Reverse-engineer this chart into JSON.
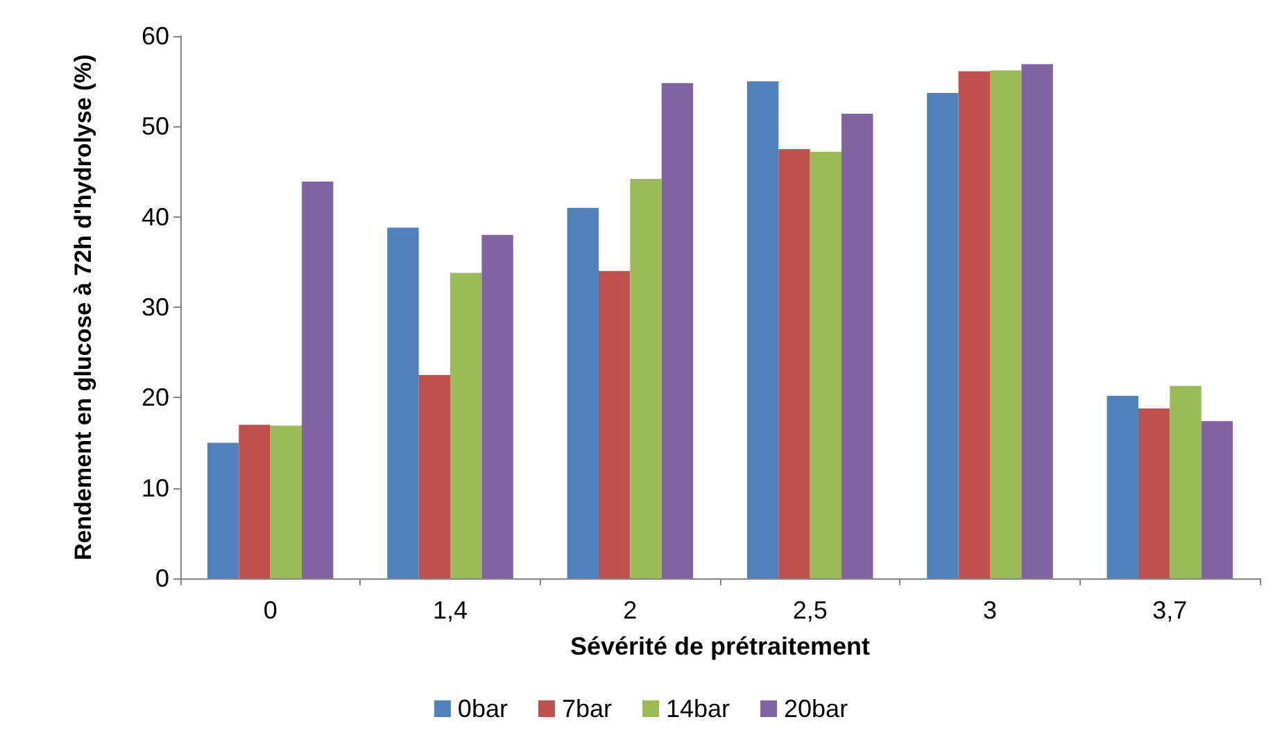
{
  "chart_data": {
    "type": "bar",
    "xlabel": "Sévérité de prétraitement",
    "ylabel": "Rendement en glucose à 72h d'hydrolyse (%)",
    "categories": [
      "0",
      "1,4",
      "2",
      "2,5",
      "3",
      "3,7"
    ],
    "series": [
      {
        "name": "0bar",
        "color": "#4f81bd",
        "values": [
          15,
          38.8,
          41,
          55,
          53.7,
          20.2
        ]
      },
      {
        "name": "7bar",
        "color": "#c0504d",
        "values": [
          17,
          22.5,
          34,
          47.5,
          56.1,
          18.8
        ]
      },
      {
        "name": "14bar",
        "color": "#9bbb59",
        "values": [
          16.9,
          33.8,
          44.2,
          47.2,
          56.2,
          21.3
        ]
      },
      {
        "name": "20bar",
        "color": "#8064a2",
        "values": [
          43.9,
          38,
          54.8,
          51.4,
          56.9,
          17.4
        ]
      }
    ],
    "ylim": [
      0,
      60
    ],
    "yticks": [
      0,
      10,
      20,
      30,
      40,
      50,
      60
    ],
    "grid": false,
    "legend": "bottom"
  }
}
